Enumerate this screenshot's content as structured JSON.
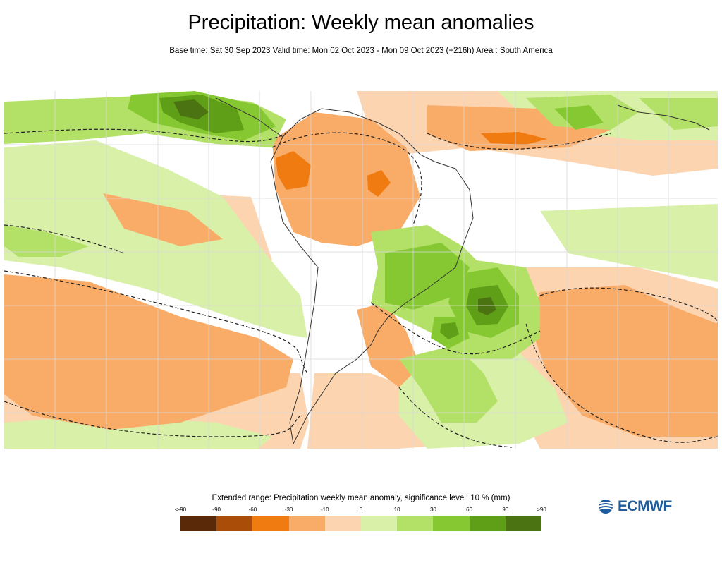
{
  "header": {
    "title": "Precipitation: Weekly mean anomalies",
    "subtitle": "Base time: Sat 30 Sep 2023 Valid time: Mon 02 Oct 2023 - Mon 09 Oct 2023 (+216h) Area : South America"
  },
  "legend": {
    "title": "Extended range: Precipitation weekly mean anomaly, significance level: 10 % (mm)",
    "ticks": [
      "<-90",
      "-90",
      "-60",
      "-30",
      "-10",
      "0",
      "10",
      "30",
      "60",
      "90",
      ">90"
    ],
    "colors": [
      "#5a2a08",
      "#a94d08",
      "#f07b10",
      "#f9ab68",
      "#fdd4b0",
      "#d9f0a8",
      "#b3e067",
      "#86c832",
      "#5f9e17",
      "#4c7312"
    ]
  },
  "logo": {
    "text": "ECMWF",
    "color": "#1d5d9e",
    "icon": "ecmwf-logo-icon"
  }
}
